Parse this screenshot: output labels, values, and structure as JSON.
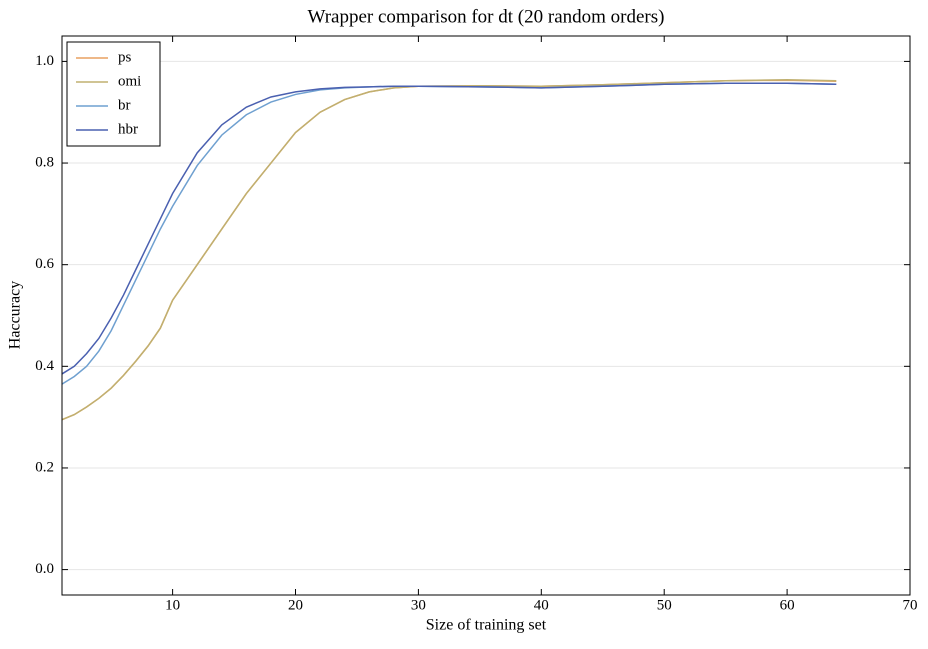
{
  "chart_data": {
    "type": "line",
    "title": "Wrapper comparison for dt (20 random orders)",
    "x_label": "Size of training set",
    "y_label": "Haccuracy",
    "x": [
      1,
      2,
      3,
      4,
      5,
      6,
      7,
      8,
      9,
      10,
      12,
      14,
      16,
      18,
      20,
      22,
      24,
      26,
      28,
      30,
      35,
      40,
      45,
      50,
      55,
      60,
      64
    ],
    "series": [
      {
        "name": "ps",
        "color": "#e8a060",
        "values": [
          0.295,
          0.305,
          0.32,
          0.337,
          0.357,
          0.382,
          0.41,
          0.44,
          0.475,
          0.53,
          0.6,
          0.67,
          0.74,
          0.8,
          0.86,
          0.9,
          0.925,
          0.94,
          0.948,
          0.951,
          0.952,
          0.951,
          0.954,
          0.958,
          0.962,
          0.963,
          0.961
        ]
      },
      {
        "name": "omi",
        "color": "#c0b070",
        "values": [
          0.295,
          0.305,
          0.32,
          0.337,
          0.357,
          0.382,
          0.41,
          0.44,
          0.475,
          0.53,
          0.6,
          0.67,
          0.74,
          0.8,
          0.86,
          0.9,
          0.925,
          0.94,
          0.948,
          0.951,
          0.952,
          0.951,
          0.954,
          0.958,
          0.962,
          0.964,
          0.962
        ]
      },
      {
        "name": "br",
        "color": "#6fa0d0",
        "values": [
          0.365,
          0.38,
          0.4,
          0.43,
          0.47,
          0.52,
          0.57,
          0.62,
          0.67,
          0.715,
          0.795,
          0.855,
          0.895,
          0.92,
          0.935,
          0.944,
          0.948,
          0.95,
          0.951,
          0.951,
          0.95,
          0.948,
          0.951,
          0.955,
          0.957,
          0.957,
          0.955
        ]
      },
      {
        "name": "hbr",
        "color": "#4a60b0",
        "values": [
          0.385,
          0.4,
          0.425,
          0.455,
          0.495,
          0.54,
          0.59,
          0.64,
          0.69,
          0.74,
          0.82,
          0.875,
          0.91,
          0.93,
          0.94,
          0.946,
          0.949,
          0.95,
          0.951,
          0.951,
          0.95,
          0.948,
          0.951,
          0.955,
          0.957,
          0.957,
          0.955
        ]
      }
    ],
    "xlim": [
      1,
      70
    ],
    "xticks": [
      10,
      20,
      30,
      40,
      50,
      60,
      70
    ],
    "ylim": [
      -0.05,
      1.05
    ],
    "yticks": [
      {
        "value": 0,
        "label": "0.0"
      },
      0.2,
      0.4,
      0.6,
      0.8,
      {
        "value": 1,
        "label": "1.0"
      }
    ],
    "grid": true,
    "legend": "upper-left"
  }
}
